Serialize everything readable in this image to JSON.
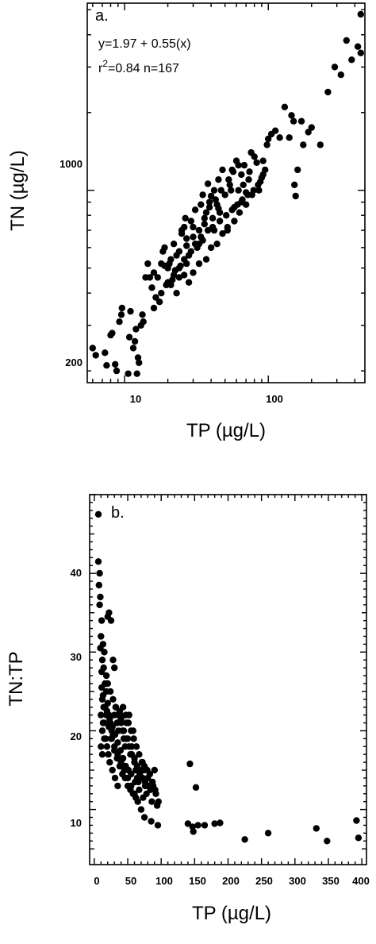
{
  "chart_data": [
    {
      "type": "scatter",
      "panel_label": "a.",
      "xlabel": "TP (µg/L)",
      "ylabel": "TN (µg/L)",
      "xscale": "log",
      "yscale": "log",
      "xlim": [
        5.5,
        470
      ],
      "ylim": [
        180,
        5300
      ],
      "xticks": [
        10,
        100
      ],
      "xtick_labels": [
        "10",
        "100"
      ],
      "yticks": [
        200,
        1000
      ],
      "ytick_labels": [
        "200",
        "1000"
      ],
      "annotation": {
        "line1": "y=1.97 + 0.55(x)",
        "r2_prefix": "r",
        "r2_sup": "2",
        "r2_rest": "=0.84 n=167"
      },
      "points": [
        [
          6,
          245
        ],
        [
          6.3,
          230
        ],
        [
          7.3,
          235
        ],
        [
          7.5,
          210
        ],
        [
          8.2,
          280
        ],
        [
          8.6,
          212
        ],
        [
          8.8,
          200
        ],
        [
          9.2,
          310
        ],
        [
          9.6,
          350
        ],
        [
          10.6,
          195
        ],
        [
          11,
          340
        ],
        [
          11.5,
          245
        ],
        [
          11.8,
          260
        ],
        [
          12.2,
          195
        ],
        [
          12.4,
          225
        ],
        [
          12.6,
          215
        ],
        [
          13,
          300
        ],
        [
          13.3,
          330
        ],
        [
          14.5,
          520
        ],
        [
          15,
          460
        ],
        [
          15.5,
          420
        ],
        [
          16.5,
          385
        ],
        [
          17,
          460
        ],
        [
          18,
          520
        ],
        [
          18.5,
          580
        ],
        [
          19,
          600
        ],
        [
          20,
          500
        ],
        [
          20.5,
          520
        ],
        [
          21,
          540
        ],
        [
          22,
          620
        ],
        [
          22.5,
          490
        ],
        [
          23,
          560
        ],
        [
          24,
          460
        ],
        [
          24.5,
          510
        ],
        [
          25,
          680
        ],
        [
          26,
          720
        ],
        [
          26.5,
          780
        ],
        [
          27,
          520
        ],
        [
          28,
          560
        ],
        [
          29,
          760
        ],
        [
          30,
          660
        ],
        [
          31,
          840
        ],
        [
          32,
          600
        ],
        [
          33,
          700
        ],
        [
          34,
          880
        ],
        [
          35,
          960
        ],
        [
          36,
          740
        ],
        [
          37,
          820
        ],
        [
          38,
          1060
        ],
        [
          39,
          900
        ],
        [
          40,
          950
        ],
        [
          41,
          780
        ],
        [
          42,
          1000
        ],
        [
          44,
          880
        ],
        [
          45,
          1100
        ],
        [
          46,
          820
        ],
        [
          48,
          1200
        ],
        [
          50,
          960
        ],
        [
          52,
          720
        ],
        [
          54,
          1050
        ],
        [
          56,
          1200
        ],
        [
          58,
          860
        ],
        [
          60,
          1300
        ],
        [
          62,
          1000
        ],
        [
          65,
          1150
        ],
        [
          68,
          1250
        ],
        [
          70,
          980
        ],
        [
          73,
          1100
        ],
        [
          76,
          1400
        ],
        [
          80,
          1350
        ],
        [
          86,
          1000
        ],
        [
          90,
          1120
        ],
        [
          95,
          1200
        ],
        [
          98,
          1500
        ],
        [
          25,
          700
        ],
        [
          27,
          650
        ],
        [
          33,
          620
        ],
        [
          45,
          850
        ],
        [
          55,
          1000
        ],
        [
          65,
          900
        ],
        [
          36,
          780
        ],
        [
          42,
          700
        ],
        [
          130,
          2100
        ],
        [
          145,
          1950
        ],
        [
          150,
          1850
        ],
        [
          152,
          1050
        ],
        [
          155,
          950
        ],
        [
          160,
          1200
        ],
        [
          175,
          1500
        ],
        [
          190,
          1680
        ],
        [
          230,
          1500
        ],
        [
          260,
          2400
        ],
        [
          290,
          3000
        ],
        [
          350,
          3800
        ],
        [
          380,
          3200
        ],
        [
          420,
          3600
        ],
        [
          440,
          4800
        ],
        [
          14,
          460
        ],
        [
          16,
          480
        ],
        [
          19,
          510
        ],
        [
          21,
          430
        ],
        [
          23,
          400
        ],
        [
          26,
          470
        ],
        [
          28,
          440
        ],
        [
          30,
          480
        ],
        [
          33,
          520
        ],
        [
          37,
          540
        ],
        [
          40,
          600
        ],
        [
          44,
          620
        ],
        [
          48,
          680
        ],
        [
          52,
          700
        ],
        [
          58,
          760
        ],
        [
          63,
          820
        ],
        [
          70,
          880
        ],
        [
          77,
          960
        ],
        [
          85,
          1050
        ],
        [
          92,
          1150
        ],
        [
          105,
          1650
        ],
        [
          112,
          1700
        ],
        [
          120,
          1600
        ],
        [
          16,
          350
        ],
        [
          18,
          400
        ],
        [
          20,
          440
        ],
        [
          22,
          470
        ],
        [
          24,
          500
        ],
        [
          26,
          540
        ],
        [
          29,
          580
        ],
        [
          31,
          620
        ],
        [
          34,
          660
        ],
        [
          38,
          700
        ],
        [
          41,
          720
        ],
        [
          46,
          760
        ],
        [
          51,
          800
        ],
        [
          56,
          840
        ],
        [
          61,
          880
        ],
        [
          66,
          920
        ],
        [
          72,
          960
        ],
        [
          79,
          1000
        ],
        [
          88,
          1080
        ],
        [
          12,
          290
        ],
        [
          10.8,
          270
        ],
        [
          13.5,
          310
        ],
        [
          17.5,
          370
        ],
        [
          19.5,
          430
        ],
        [
          21.5,
          450
        ],
        [
          24,
          580
        ],
        [
          27,
          610
        ],
        [
          30,
          720
        ],
        [
          35,
          640
        ],
        [
          39,
          860
        ],
        [
          43,
          920
        ],
        [
          47,
          1000
        ],
        [
          53,
          1100
        ],
        [
          57,
          1180
        ],
        [
          62,
          1250
        ],
        [
          67,
          1050
        ],
        [
          74,
          1180
        ],
        [
          83,
          1280
        ],
        [
          92,
          1300
        ],
        [
          100,
          1580
        ],
        [
          140,
          1600
        ],
        [
          170,
          1850
        ],
        [
          200,
          1750
        ],
        [
          320,
          2800
        ],
        [
          440,
          3400
        ],
        [
          9.5,
          330
        ],
        [
          8,
          275
        ]
      ]
    },
    {
      "type": "scatter",
      "panel_label": "b.",
      "xlabel": "TP (µg/L)",
      "ylabel": "TN:TP",
      "xlim": [
        -7,
        407
      ],
      "ylim": [
        3,
        50
      ],
      "xticks": [
        0,
        50,
        100,
        150,
        200,
        250,
        300,
        350,
        400
      ],
      "xtick_labels": [
        "0",
        "50",
        "100",
        "150",
        "200",
        "250",
        "300",
        "350",
        "400"
      ],
      "yticks": [
        10,
        20,
        30,
        40
      ],
      "ytick_labels": [
        "10",
        "20",
        "30",
        "40"
      ],
      "points": [
        [
          6,
          47.5
        ],
        [
          6,
          41.5
        ],
        [
          8,
          40
        ],
        [
          7,
          38.5
        ],
        [
          9,
          37
        ],
        [
          8,
          36
        ],
        [
          11,
          34
        ],
        [
          10,
          32
        ],
        [
          13,
          31
        ],
        [
          15,
          30
        ],
        [
          12,
          29
        ],
        [
          11,
          27.5
        ],
        [
          14,
          28
        ],
        [
          18,
          27
        ],
        [
          20,
          34.5
        ],
        [
          22,
          35
        ],
        [
          25,
          34
        ],
        [
          28,
          29
        ],
        [
          30,
          28
        ],
        [
          16,
          26
        ],
        [
          18,
          25
        ],
        [
          12,
          24
        ],
        [
          14,
          23
        ],
        [
          10,
          22
        ],
        [
          13,
          21
        ],
        [
          12,
          20
        ],
        [
          15,
          19
        ],
        [
          10,
          18
        ],
        [
          12,
          17
        ],
        [
          20,
          23.5
        ],
        [
          22,
          22
        ],
        [
          24,
          21
        ],
        [
          26,
          20
        ],
        [
          28,
          19.5
        ],
        [
          30,
          22
        ],
        [
          32,
          23
        ],
        [
          34,
          21
        ],
        [
          36,
          20
        ],
        [
          38,
          22.5
        ],
        [
          40,
          21.5
        ],
        [
          42,
          20
        ],
        [
          44,
          19
        ],
        [
          46,
          18
        ],
        [
          48,
          21
        ],
        [
          50,
          19
        ],
        [
          52,
          22
        ],
        [
          54,
          17
        ],
        [
          56,
          18
        ],
        [
          58,
          20
        ],
        [
          60,
          16
        ],
        [
          62,
          15
        ],
        [
          64,
          14
        ],
        [
          66,
          13.5
        ],
        [
          68,
          15
        ],
        [
          70,
          14
        ],
        [
          72,
          16
        ],
        [
          74,
          15
        ],
        [
          76,
          13
        ],
        [
          78,
          12
        ],
        [
          80,
          14
        ],
        [
          82,
          13
        ],
        [
          84,
          12.5
        ],
        [
          86,
          11
        ],
        [
          88,
          13
        ],
        [
          90,
          15
        ],
        [
          92,
          12
        ],
        [
          94,
          10.5
        ],
        [
          96,
          11
        ],
        [
          20,
          26
        ],
        [
          24,
          25
        ],
        [
          28,
          24
        ],
        [
          32,
          23
        ],
        [
          36,
          22
        ],
        [
          40,
          21
        ],
        [
          44,
          20
        ],
        [
          48,
          19
        ],
        [
          52,
          18
        ],
        [
          56,
          17
        ],
        [
          60,
          16.5
        ],
        [
          64,
          15.5
        ],
        [
          68,
          14.5
        ],
        [
          72,
          14
        ],
        [
          76,
          13.5
        ],
        [
          80,
          13
        ],
        [
          25,
          19
        ],
        [
          30,
          18
        ],
        [
          35,
          17
        ],
        [
          40,
          16
        ],
        [
          45,
          15
        ],
        [
          50,
          14
        ],
        [
          55,
          13
        ],
        [
          60,
          12
        ],
        [
          65,
          11
        ],
        [
          70,
          10
        ],
        [
          75,
          9
        ],
        [
          85,
          8.5
        ],
        [
          95,
          8
        ],
        [
          140,
          8.2
        ],
        [
          143,
          15.8
        ],
        [
          147,
          7.8
        ],
        [
          148,
          7.2
        ],
        [
          152,
          12.8
        ],
        [
          155,
          8
        ],
        [
          165,
          8
        ],
        [
          180,
          8.2
        ],
        [
          188,
          8.3
        ],
        [
          225,
          6.2
        ],
        [
          260,
          7
        ],
        [
          332,
          7.6
        ],
        [
          348,
          6
        ],
        [
          392,
          8.6
        ],
        [
          395,
          6.4
        ],
        [
          18,
          22
        ],
        [
          22,
          20.5
        ],
        [
          26,
          19
        ],
        [
          30,
          17.5
        ],
        [
          34,
          16.5
        ],
        [
          38,
          15.5
        ],
        [
          42,
          14.5
        ],
        [
          46,
          14
        ],
        [
          50,
          13
        ],
        [
          54,
          12.5
        ],
        [
          58,
          12
        ],
        [
          62,
          11.5
        ],
        [
          15,
          21
        ],
        [
          17,
          19
        ],
        [
          19,
          18
        ],
        [
          21,
          17
        ],
        [
          23,
          16
        ],
        [
          27,
          15
        ],
        [
          31,
          14
        ],
        [
          35,
          13
        ],
        [
          39,
          22
        ],
        [
          43,
          23
        ],
        [
          47,
          22
        ],
        [
          51,
          21
        ],
        [
          55,
          20
        ],
        [
          59,
          19
        ],
        [
          63,
          18
        ],
        [
          67,
          17
        ],
        [
          71,
          16
        ],
        [
          75,
          15.5
        ],
        [
          79,
          15
        ],
        [
          83,
          14.5
        ],
        [
          87,
          13.5
        ],
        [
          91,
          12.5
        ],
        [
          9,
          30.5
        ],
        [
          11,
          25.5
        ],
        [
          13,
          24.5
        ],
        [
          16,
          23
        ],
        [
          19,
          22.5
        ],
        [
          23,
          21.5
        ],
        [
          27,
          20.5
        ],
        [
          31,
          19.5
        ],
        [
          35,
          18.5
        ],
        [
          39,
          17.5
        ],
        [
          43,
          16.5
        ],
        [
          47,
          15.5
        ],
        [
          51,
          15
        ],
        [
          55,
          14.5
        ],
        [
          61,
          13.5
        ],
        [
          67,
          12.5
        ],
        [
          73,
          11.5
        ]
      ]
    }
  ]
}
